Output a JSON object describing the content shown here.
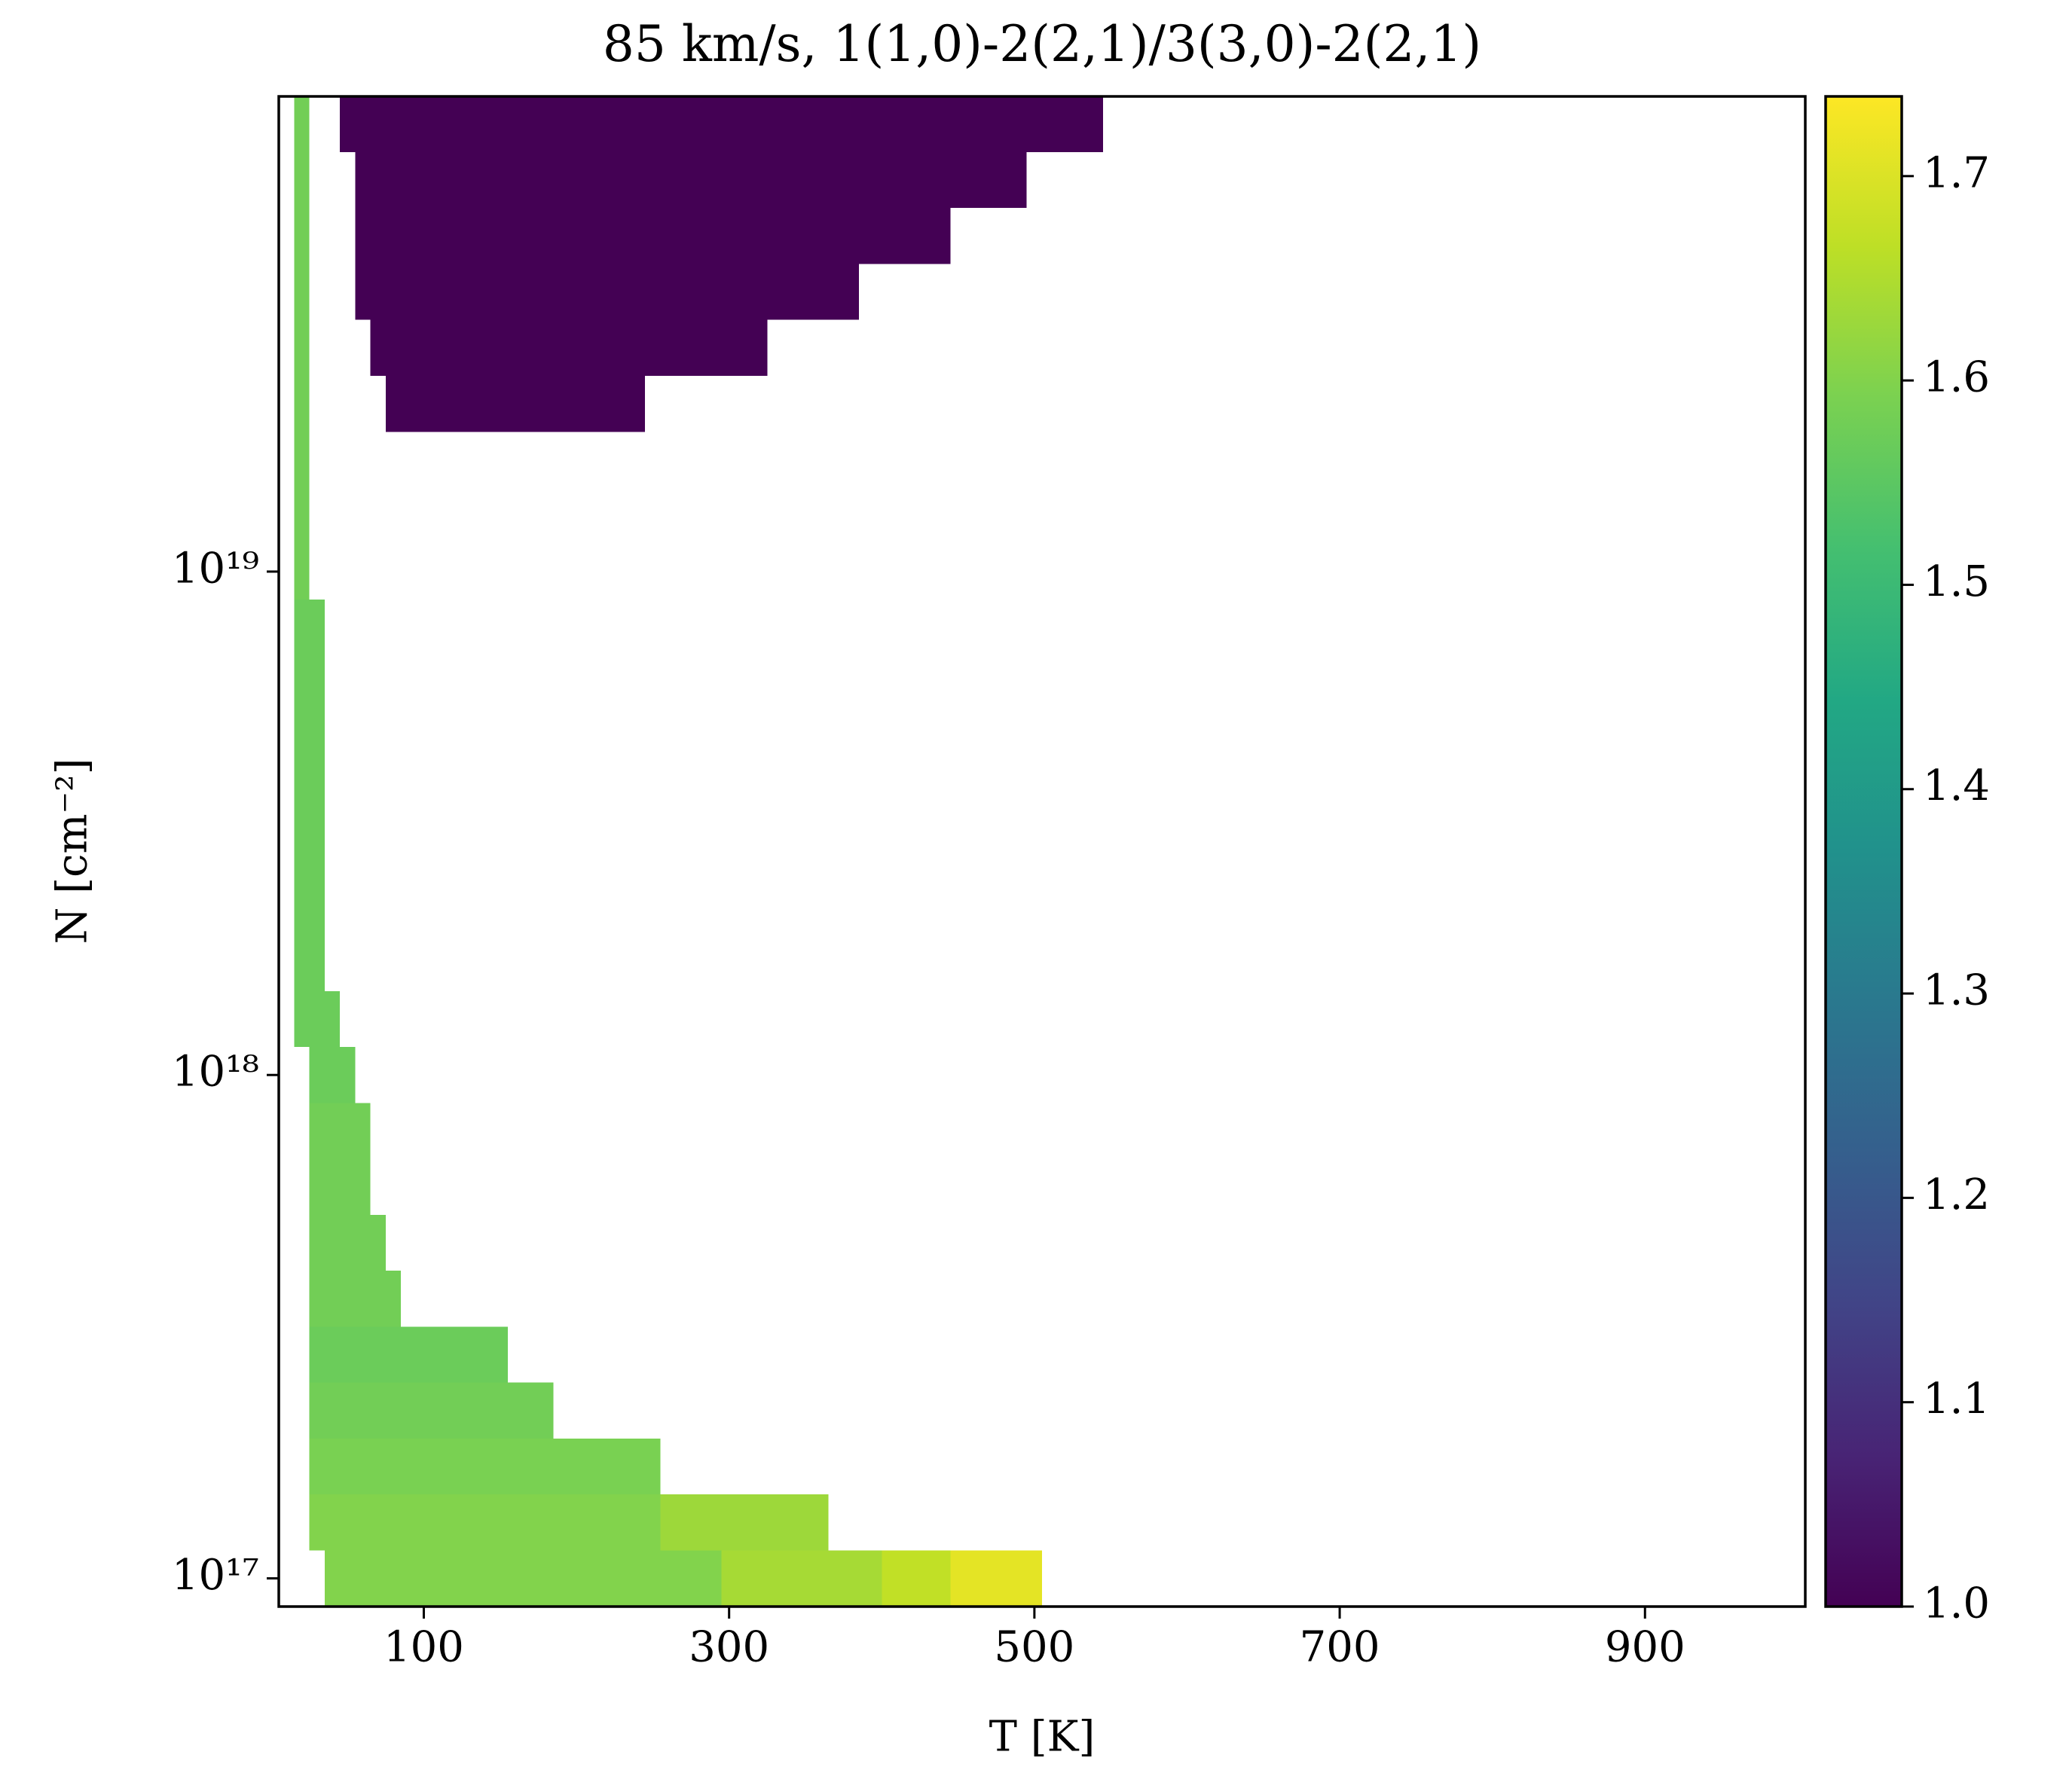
{
  "chart_data": {
    "type": "heatmap",
    "title": "85 km/s, 1(1,0)-2(2,1)/3(3,0)-2(2,1)",
    "xlabel": "T [K]",
    "ylabel": "N [cm⁻²]",
    "yscale": "log",
    "cmap": "viridis",
    "xlim": [
      5,
      1005
    ],
    "xticks": [
      100,
      300,
      500,
      700,
      900
    ],
    "ylim": [
      8.79e+16,
      8.79e+19
    ],
    "yticks": [
      {
        "value": 1e+17,
        "label": "10¹⁷"
      },
      {
        "value": 1e+18,
        "label": "10¹⁸"
      },
      {
        "value": 1e+19,
        "label": "10¹⁹"
      }
    ],
    "clim": [
      1.0,
      1.739
    ],
    "cticks": [
      {
        "value": 1,
        "label": "1.0"
      },
      1.1,
      1.2,
      1.3,
      1.4,
      1.5,
      1.6,
      1.7
    ],
    "rows": [
      {
        "n": 1e+17,
        "cells": [
          {
            "t0": 35,
            "t1": 295,
            "value": 1.6
          },
          {
            "t0": 295,
            "t1": 400,
            "value": 1.64
          },
          {
            "t0": 400,
            "t1": 445,
            "value": 1.67
          },
          {
            "t0": 445,
            "t1": 505,
            "value": 1.71
          }
        ]
      },
      {
        "n": 1.2915e+17,
        "cells": [
          {
            "t0": 25,
            "t1": 255,
            "value": 1.6
          },
          {
            "t0": 255,
            "t1": 365,
            "value": 1.63
          }
        ]
      },
      {
        "n": 1.6681e+17,
        "cells": [
          {
            "t0": 25,
            "t1": 255,
            "value": 1.59
          }
        ]
      },
      {
        "n": 2.1544e+17,
        "cells": [
          {
            "t0": 25,
            "t1": 185,
            "value": 1.58
          }
        ]
      },
      {
        "n": 2.7826e+17,
        "cells": [
          {
            "t0": 25,
            "t1": 155,
            "value": 1.57
          }
        ]
      },
      {
        "n": 3.5938e+17,
        "cells": [
          {
            "t0": 25,
            "t1": 85,
            "value": 1.58
          }
        ]
      },
      {
        "n": 4.6416e+17,
        "cells": [
          {
            "t0": 25,
            "t1": 75,
            "value": 1.58
          }
        ]
      },
      {
        "n": 5.9948e+17,
        "cells": [
          {
            "t0": 25,
            "t1": 65,
            "value": 1.58
          }
        ]
      },
      {
        "n": 7.7426e+17,
        "cells": [
          {
            "t0": 25,
            "t1": 65,
            "value": 1.58
          }
        ]
      },
      {
        "n": 1e+18,
        "cells": [
          {
            "t0": 25,
            "t1": 55,
            "value": 1.57
          }
        ]
      },
      {
        "n": 1.2915e+18,
        "cells": [
          {
            "t0": 15,
            "t1": 45,
            "value": 1.57
          }
        ]
      },
      {
        "n": 1.6681e+18,
        "cells": [
          {
            "t0": 15,
            "t1": 35,
            "value": 1.57
          }
        ]
      },
      {
        "n": 2.1544e+18,
        "cells": [
          {
            "t0": 15,
            "t1": 35,
            "value": 1.57
          }
        ]
      },
      {
        "n": 2.7826e+18,
        "cells": [
          {
            "t0": 15,
            "t1": 35,
            "value": 1.57
          }
        ]
      },
      {
        "n": 3.5938e+18,
        "cells": [
          {
            "t0": 15,
            "t1": 35,
            "value": 1.57
          }
        ]
      },
      {
        "n": 4.6416e+18,
        "cells": [
          {
            "t0": 15,
            "t1": 35,
            "value": 1.57
          }
        ]
      },
      {
        "n": 5.9948e+18,
        "cells": [
          {
            "t0": 15,
            "t1": 35,
            "value": 1.57
          }
        ]
      },
      {
        "n": 7.7426e+18,
        "cells": [
          {
            "t0": 15,
            "t1": 35,
            "value": 1.57
          }
        ]
      },
      {
        "n": 1e+19,
        "cells": [
          {
            "t0": 15,
            "t1": 25,
            "value": 1.58
          }
        ]
      },
      {
        "n": 1.2915e+19,
        "cells": [
          {
            "t0": 15,
            "t1": 25,
            "value": 1.58
          }
        ]
      },
      {
        "n": 1.6681e+19,
        "cells": [
          {
            "t0": 15,
            "t1": 25,
            "value": 1.58
          }
        ]
      },
      {
        "n": 2.1544e+19,
        "cells": [
          {
            "t0": 15,
            "t1": 25,
            "value": 1.58
          },
          {
            "t0": 75,
            "t1": 245,
            "value": 1.0
          }
        ]
      },
      {
        "n": 2.7826e+19,
        "cells": [
          {
            "t0": 15,
            "t1": 25,
            "value": 1.58
          },
          {
            "t0": 65,
            "t1": 325,
            "value": 1.0
          }
        ]
      },
      {
        "n": 3.5938e+19,
        "cells": [
          {
            "t0": 15,
            "t1": 25,
            "value": 1.58
          },
          {
            "t0": 55,
            "t1": 385,
            "value": 1.0
          }
        ]
      },
      {
        "n": 4.6416e+19,
        "cells": [
          {
            "t0": 15,
            "t1": 25,
            "value": 1.58
          },
          {
            "t0": 55,
            "t1": 445,
            "value": 1.0
          }
        ]
      },
      {
        "n": 5.9948e+19,
        "cells": [
          {
            "t0": 15,
            "t1": 25,
            "value": 1.58
          },
          {
            "t0": 55,
            "t1": 495,
            "value": 1.0
          }
        ]
      },
      {
        "n": 7.7426e+19,
        "cells": [
          {
            "t0": 15,
            "t1": 25,
            "value": 1.58
          },
          {
            "t0": 45,
            "t1": 545,
            "value": 1.0
          }
        ]
      }
    ]
  }
}
